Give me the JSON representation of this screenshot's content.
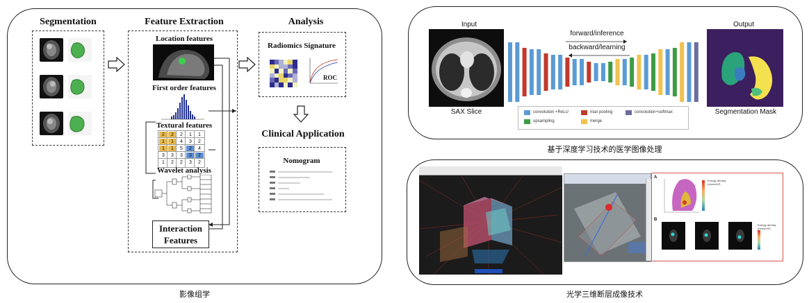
{
  "panel1": {
    "caption": "影像组学",
    "segmentation_title": "Segmentation",
    "feature_extraction_title": "Feature Extraction",
    "analysis_title": "Analysis",
    "location_features": "Location features",
    "first_order_features": "First order features",
    "textural_features": "Textural features",
    "wavelet_analysis": "Wavelet analysis",
    "interaction_features_line1": "Interaction",
    "interaction_features_line2": "Features",
    "radiomics_signature": "Radiomics Signature",
    "roc_label": "ROC",
    "clinical_application": "Clinical Application",
    "nomogram": "Nomogram",
    "texture_matrix": [
      [
        "2",
        "2",
        "2",
        "1",
        "1"
      ],
      [
        "1",
        "1",
        "4",
        "3",
        "2"
      ],
      [
        "1",
        "1",
        "5",
        "2",
        "4"
      ],
      [
        "3",
        "3",
        "3",
        "3",
        "2"
      ],
      [
        "1",
        "2",
        "2",
        "3",
        "2"
      ]
    ]
  },
  "panel2": {
    "caption": "基于深度学习技术的医学图像处理",
    "input_label": "Input",
    "output_label": "Output",
    "sax_slice_label": "SAX Slice",
    "segmentation_mask_label": "Segmentation Mask",
    "forward_label": "forward/inference",
    "backward_label": "backward/learning",
    "legend": [
      {
        "label": "convolution +ReLU",
        "color": "#5b9bd5"
      },
      {
        "label": "max pooling",
        "color": "#c0392b"
      },
      {
        "label": "convolution+softmax",
        "color": "#6c6c9e"
      },
      {
        "label": "upsampling",
        "color": "#3e9b45"
      },
      {
        "label": "merge",
        "color": "#f2c14e"
      }
    ]
  },
  "panel3": {
    "caption": "光学三维断层成像技术",
    "fig_label_a": "A",
    "fig_label_b": "B",
    "energy_density_title": "Energy density",
    "energy_density_unit": "(mm/mm³)"
  }
}
